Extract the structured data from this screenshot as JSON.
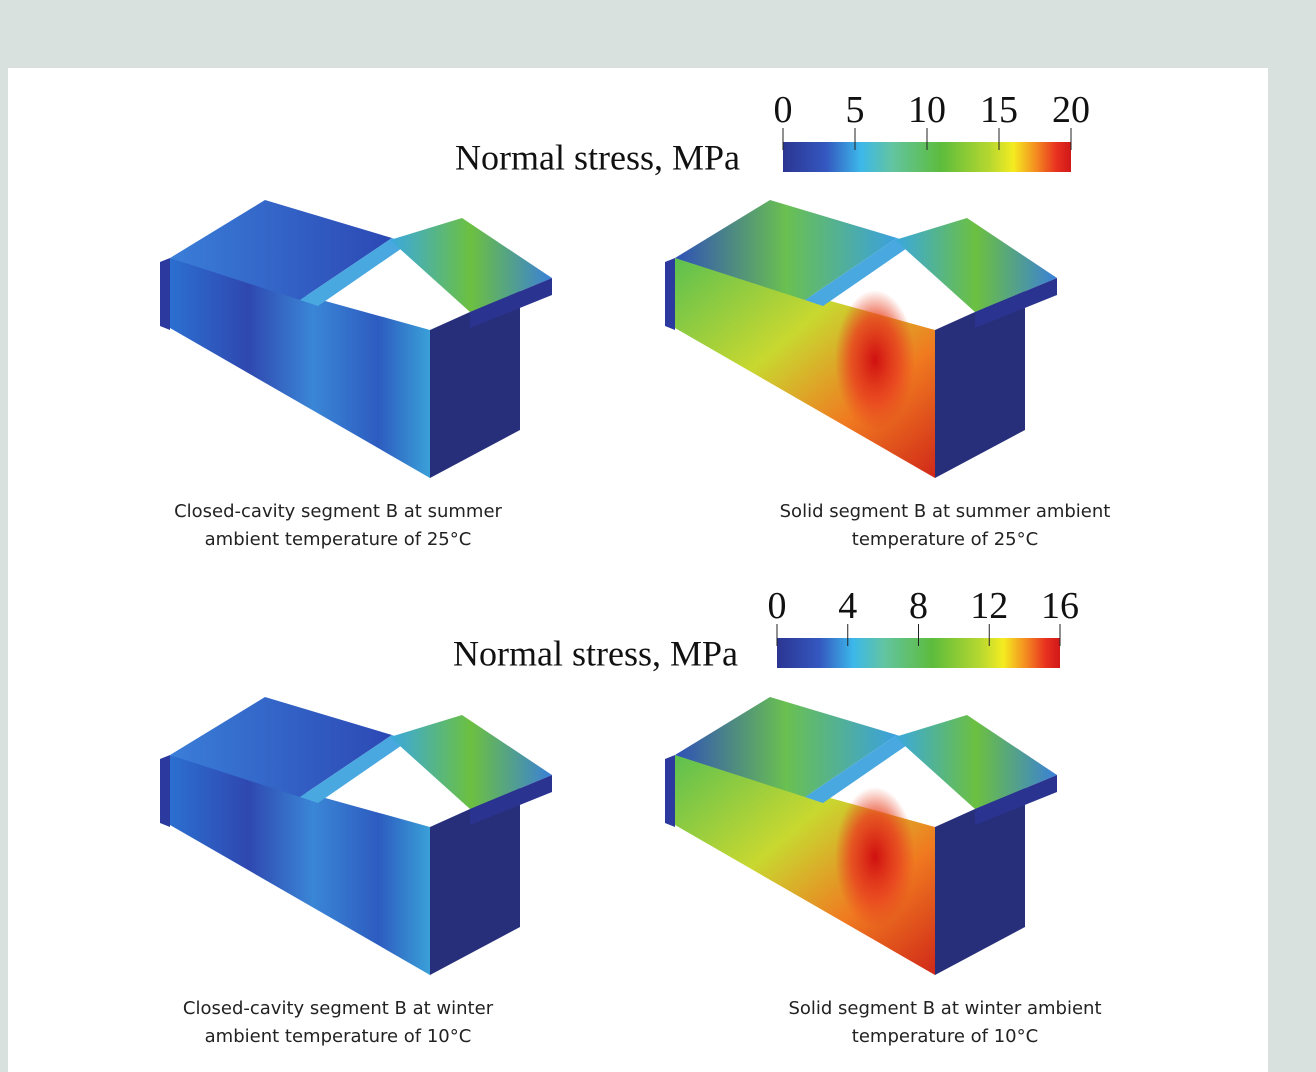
{
  "legends": [
    {
      "title": "Normal stress, MPa",
      "lim": [
        0,
        20
      ],
      "ticks": [
        0,
        5,
        10,
        15,
        20
      ]
    },
    {
      "title": "Normal stress, MPa",
      "lim": [
        0,
        16
      ],
      "ticks": [
        0,
        4,
        8,
        12,
        16
      ]
    }
  ],
  "panels": [
    {
      "caption": [
        "Closed-cavity segment B at summer",
        "ambient temperature of 25°C"
      ]
    },
    {
      "caption": [
        "Solid segment B at summer ambient",
        "temperature of 25°C"
      ]
    },
    {
      "caption": [
        "Closed-cavity segment B at winter",
        "ambient temperature of 10°C"
      ]
    },
    {
      "caption": [
        "Solid segment B at winter ambient",
        "temperature of 10°C"
      ]
    }
  ]
}
